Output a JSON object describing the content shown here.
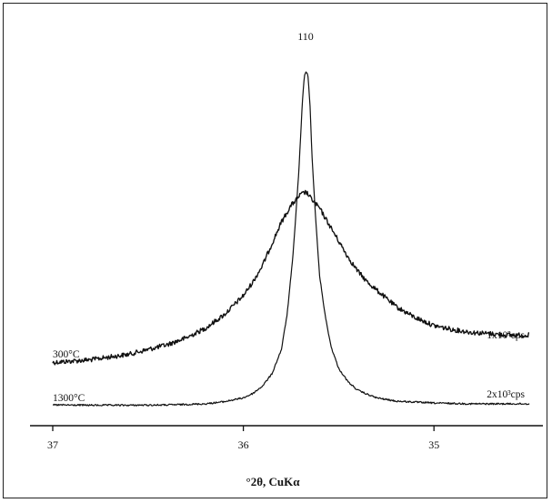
{
  "chart_data": {
    "type": "line",
    "xlabel": "°2θ, CuKα",
    "xlim": [
      37.0,
      34.5
    ],
    "x_reversed": true,
    "xticks": [
      37,
      36,
      35
    ],
    "yticks_shown": false,
    "grid": false,
    "annotations": {
      "peak_label": "110",
      "series_300_scale": "1x10³cps",
      "series_1300_scale": "2x10³cps"
    },
    "series": [
      {
        "name": "300°C",
        "x": [
          37.0,
          36.8,
          36.6,
          36.4,
          36.3,
          36.2,
          36.1,
          36.0,
          35.95,
          35.9,
          35.85,
          35.8,
          35.75,
          35.7,
          35.67,
          35.65,
          35.6,
          35.55,
          35.5,
          35.45,
          35.4,
          35.35,
          35.3,
          35.2,
          35.1,
          35.0,
          34.9,
          34.8,
          34.7,
          34.6,
          34.5
        ],
        "y": [
          3.5,
          4.5,
          6.5,
          10,
          12.5,
          16,
          21,
          28,
          33,
          39,
          47,
          55,
          61,
          65,
          66,
          64,
          60,
          54,
          48,
          42,
          37,
          33,
          30,
          24,
          20,
          17,
          15.5,
          14.5,
          14,
          13.5,
          13.5
        ]
      },
      {
        "name": "1300°C",
        "x": [
          37.0,
          36.8,
          36.6,
          36.4,
          36.2,
          36.1,
          36.0,
          35.95,
          35.9,
          35.85,
          35.8,
          35.77,
          35.74,
          35.71,
          35.69,
          35.68,
          35.67,
          35.66,
          35.65,
          35.64,
          35.62,
          35.6,
          35.57,
          35.54,
          35.5,
          35.45,
          35.4,
          35.35,
          35.3,
          35.2,
          35.0,
          34.8,
          34.6,
          34.5
        ],
        "y": [
          0.6,
          0.5,
          0.5,
          0.6,
          1.0,
          1.8,
          3.2,
          4.8,
          7.5,
          12,
          21,
          34,
          55,
          85,
          112,
          121,
          123,
          121,
          110,
          92,
          68,
          48,
          33,
          22,
          14,
          9,
          6,
          4.5,
          3.2,
          2.0,
          1.3,
          1.0,
          1.0,
          1.0
        ]
      }
    ]
  }
}
